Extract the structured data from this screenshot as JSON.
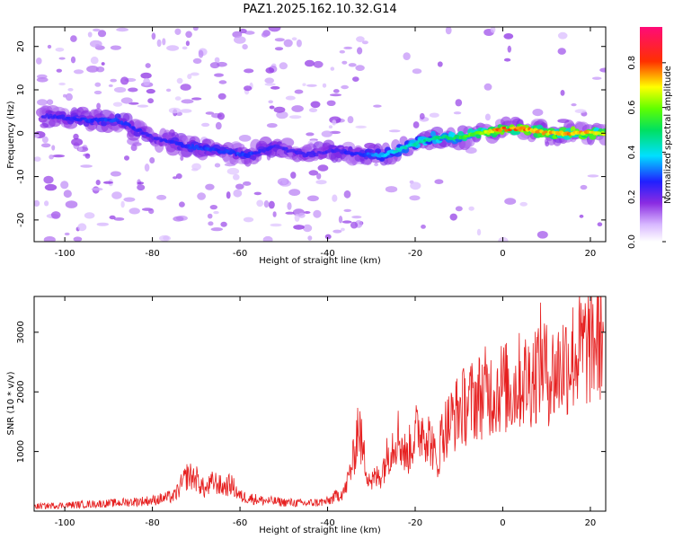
{
  "title": "PAZ1.2025.162.10.32.G14",
  "colors": {
    "snr_line": "#e62020",
    "spectrogram_background": "#ffffff",
    "axis": "#000000"
  },
  "chart_data": [
    {
      "type": "heatmap",
      "xlabel": "Height of straight line (km)",
      "ylabel": "Frequency (Hz)",
      "xlim": [
        -107,
        23.5
      ],
      "ylim": [
        -25,
        24.5
      ],
      "x_ticks": [
        -100,
        -80,
        -60,
        -40,
        -20,
        0,
        20
      ],
      "y_ticks": [
        -20,
        -10,
        0,
        10,
        20
      ],
      "colorbar": {
        "label": "Normalized spectral amplitude",
        "colormap": "rainbow (white → purple → blue → cyan → green → yellow → red → pink)",
        "range": [
          0.0,
          0.96
        ],
        "ticks": [
          0.0,
          0.2,
          0.4,
          0.6,
          0.8
        ]
      },
      "ridge": {
        "description": "Dominant frequency track (ridge of high amplitude)",
        "x": [
          -104,
          -95,
          -88,
          -80,
          -72,
          -65,
          -58,
          -52,
          -45,
          -38,
          -32,
          -27,
          -22,
          -16,
          -10,
          -5,
          0,
          5,
          10,
          15,
          20,
          23
        ],
        "y": [
          4,
          3,
          3,
          -1,
          -3,
          -4,
          -5,
          -3,
          -5,
          -4,
          -5,
          -5,
          -3,
          -1,
          -1,
          0,
          1,
          1,
          0,
          0,
          0,
          0
        ],
        "amplitude": [
          0.25,
          0.3,
          0.3,
          0.25,
          0.3,
          0.3,
          0.3,
          0.25,
          0.25,
          0.25,
          0.3,
          0.4,
          0.45,
          0.5,
          0.55,
          0.65,
          0.85,
          0.8,
          0.75,
          0.8,
          0.75,
          0.7
        ]
      }
    },
    {
      "type": "line",
      "xlabel": "Height of straight line (km)",
      "ylabel": "SNR (10 * v/v)",
      "xlim": [
        -107,
        23.5
      ],
      "ylim": [
        0,
        3600
      ],
      "x_ticks": [
        -100,
        -80,
        -60,
        -40,
        -20,
        0,
        20
      ],
      "y_ticks": [
        1000,
        2000,
        3000
      ],
      "series": [
        {
          "color": "#e62020",
          "x": [
            -107,
            -100,
            -90,
            -80,
            -75,
            -72,
            -70,
            -68,
            -66,
            -64,
            -62,
            -60,
            -55,
            -50,
            -45,
            -40,
            -36,
            -34,
            -33,
            -32,
            -31,
            -30,
            -28,
            -26,
            -24,
            -22,
            -20,
            -18,
            -16,
            -15,
            -14,
            -12,
            -10,
            -8,
            -6,
            -4,
            -2,
            0,
            2,
            4,
            6,
            8,
            9,
            10,
            12,
            14,
            16,
            18,
            20,
            22,
            23
          ],
          "y": [
            80,
            100,
            130,
            180,
            250,
            600,
            550,
            350,
            500,
            400,
            450,
            250,
            180,
            150,
            130,
            160,
            350,
            900,
            1500,
            1000,
            700,
            500,
            600,
            1000,
            1300,
            900,
            1300,
            1400,
            1100,
            700,
            1300,
            1500,
            1700,
            1800,
            1900,
            2000,
            2000,
            2100,
            2000,
            2200,
            2200,
            2400,
            2600,
            2300,
            2300,
            2500,
            2600,
            2700,
            2800,
            2900,
            3000
          ]
        }
      ]
    }
  ]
}
